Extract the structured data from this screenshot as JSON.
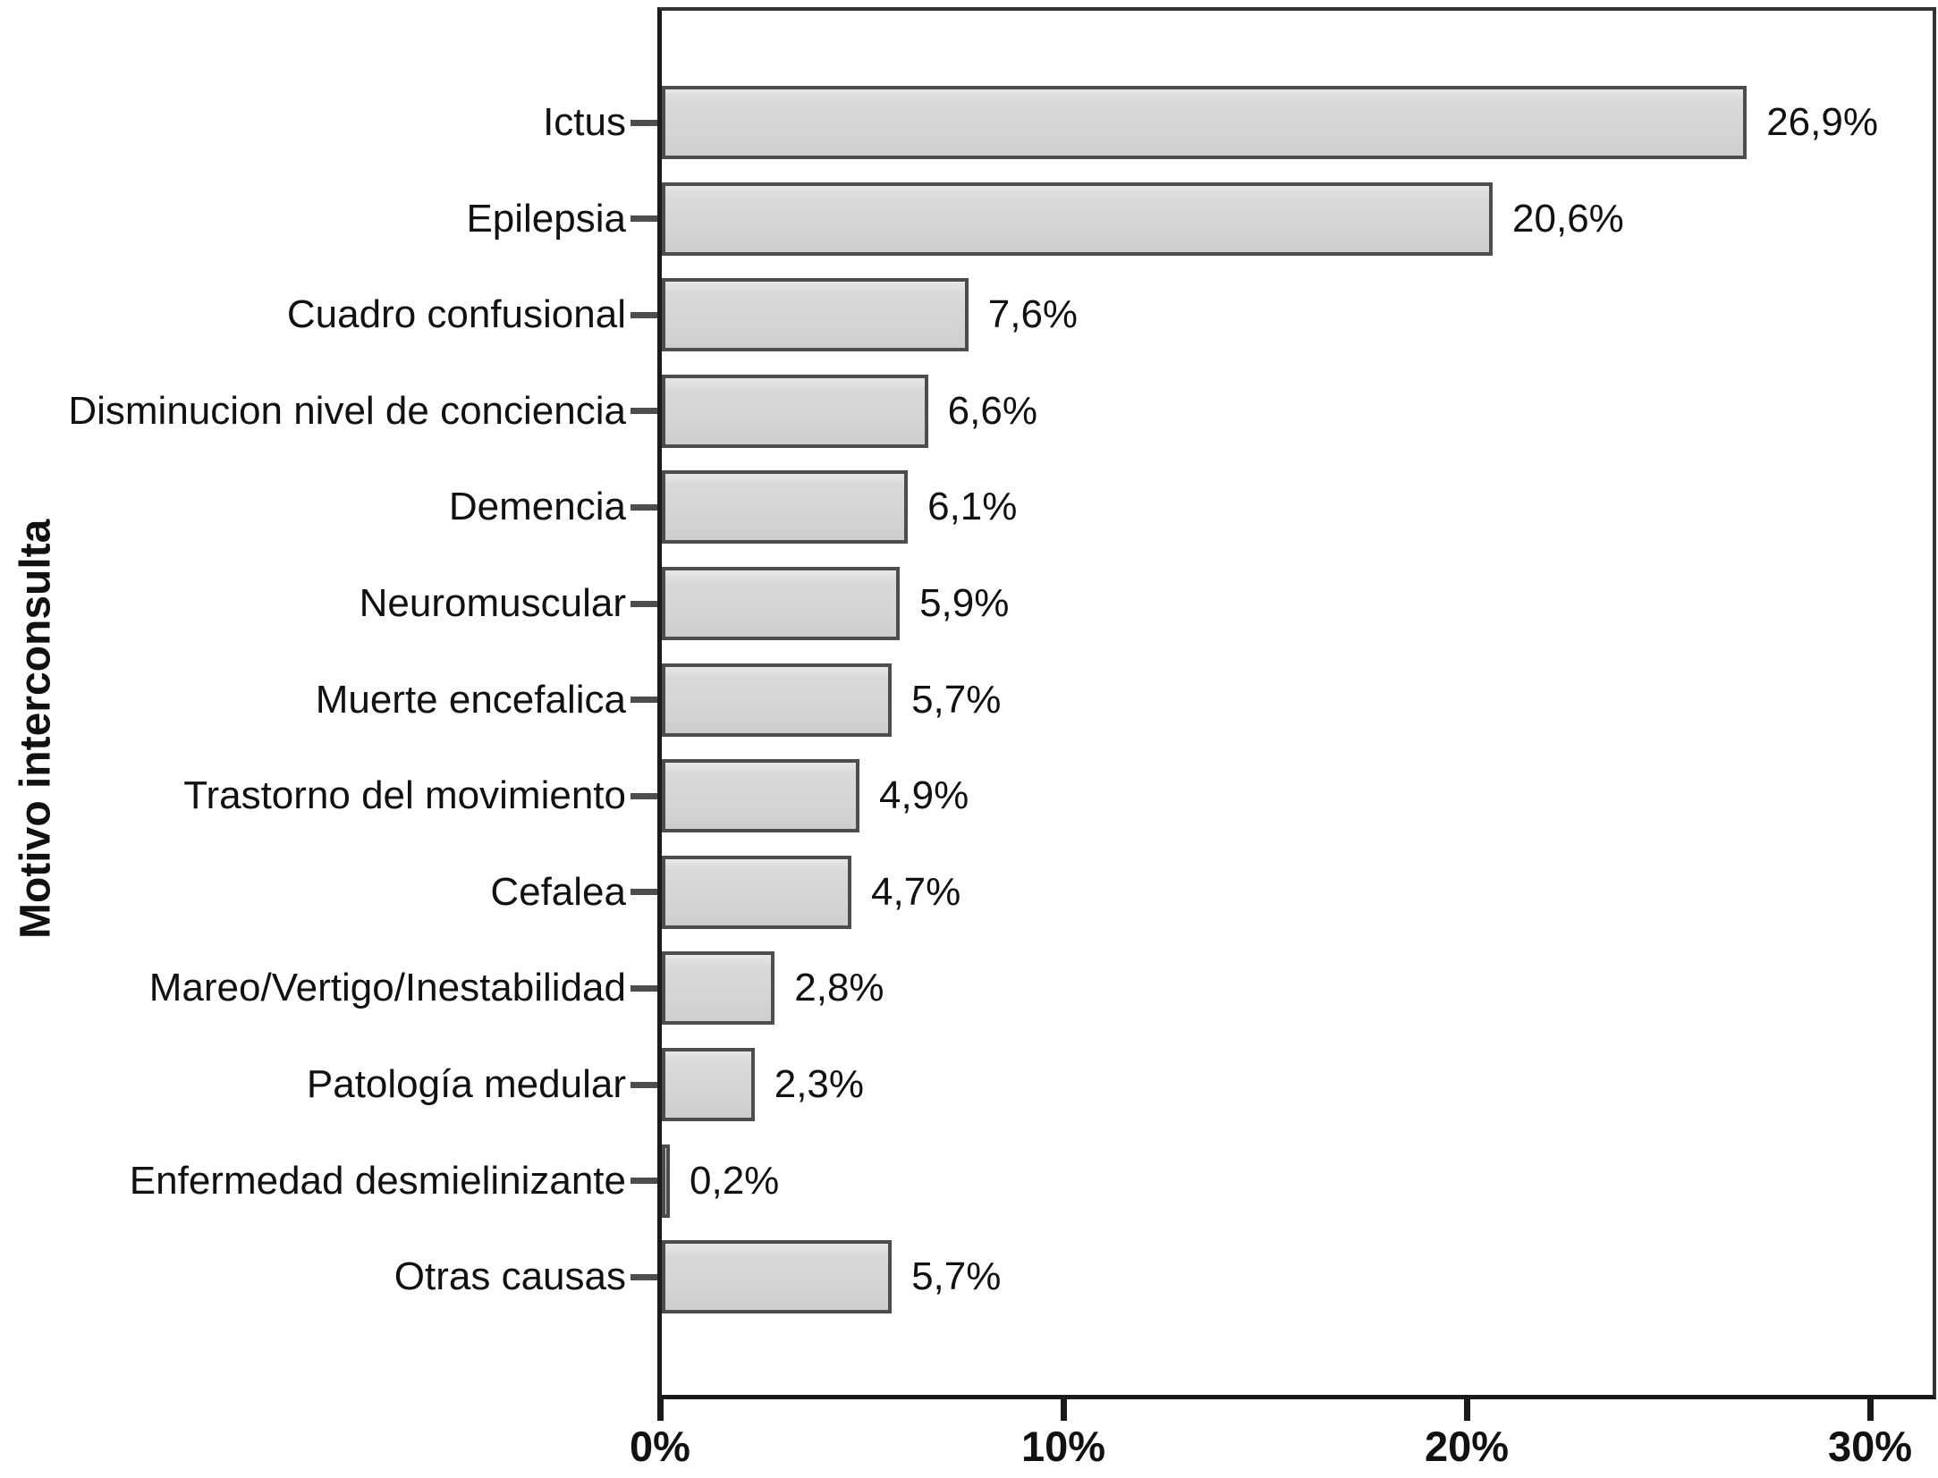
{
  "chart_data": {
    "type": "bar",
    "orientation": "horizontal",
    "title": "",
    "xlabel": "",
    "ylabel": "Motivo interconsulta",
    "categories": [
      "Ictus",
      "Epilepsia",
      "Cuadro confusional",
      "Disminucion nivel de conciencia",
      "Demencia",
      "Neuromuscular",
      "Muerte encefalica",
      "Trastorno del movimiento",
      "Cefalea",
      "Mareo/Vertigo/Inestabilidad",
      "Patología medular",
      "Enfermedad desmielinizante",
      "Otras causas"
    ],
    "values": [
      26.9,
      20.6,
      7.6,
      6.6,
      6.1,
      5.9,
      5.7,
      4.9,
      4.7,
      2.8,
      2.3,
      0.2,
      5.7
    ],
    "value_labels": [
      "26,9%",
      "20,6%",
      "7,6%",
      "6,6%",
      "6,1%",
      "5,9%",
      "5,7%",
      "4,9%",
      "4,7%",
      "2,8%",
      "2,3%",
      "0,2%",
      "5,7%"
    ],
    "x_ticks": [
      "0%",
      "10%",
      "20%",
      "30%"
    ],
    "x_tick_values": [
      0,
      10,
      20,
      30
    ],
    "xlim": [
      0,
      31.5
    ],
    "grid": false,
    "legend": "none",
    "bar_color": "#d9d9d9",
    "bar_border_color": "#4d4d4d",
    "axis_color": "#1a1a1a",
    "background_color": "#ffffff"
  }
}
